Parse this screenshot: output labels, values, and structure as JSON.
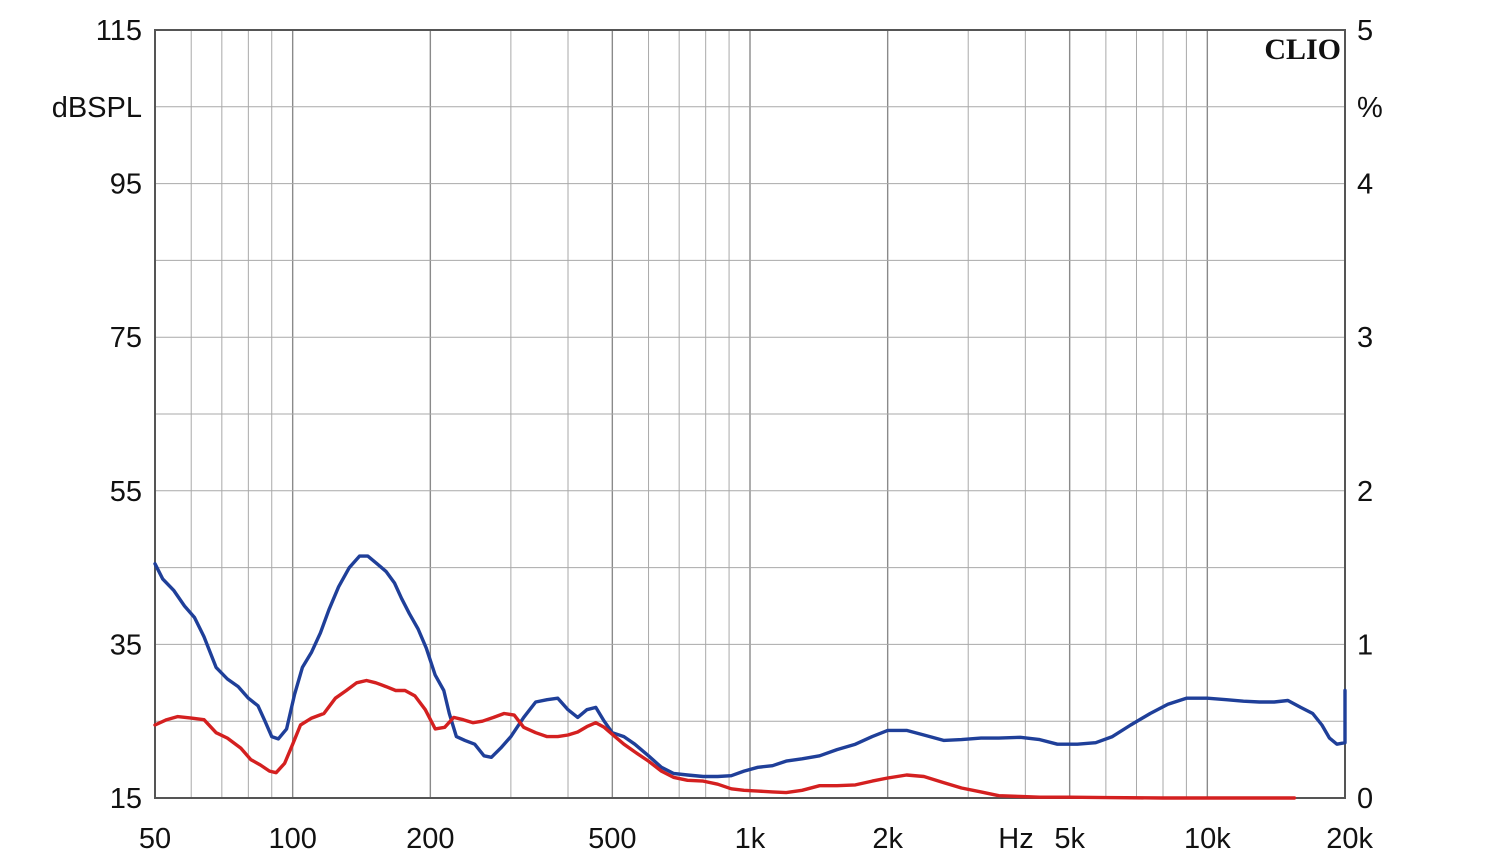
{
  "chart_data": {
    "type": "line",
    "brand": "CLIO",
    "x_scale": "log",
    "xlim": [
      50,
      20000
    ],
    "x_ticks": [
      {
        "value": 50,
        "label": "50"
      },
      {
        "value": 100,
        "label": "100"
      },
      {
        "value": 200,
        "label": "200"
      },
      {
        "value": 500,
        "label": "500"
      },
      {
        "value": 1000,
        "label": "1k"
      },
      {
        "value": 2000,
        "label": "2k"
      },
      {
        "value": 5000,
        "label": "5k"
      },
      {
        "value": 10000,
        "label": "10k"
      },
      {
        "value": 20000,
        "label": "20k"
      }
    ],
    "x_unit": "Hz",
    "y_left": {
      "unit": "dBSPL",
      "lim": [
        15,
        115
      ],
      "ticks": [
        "15",
        "35",
        "55",
        "75",
        "95",
        "115"
      ]
    },
    "y_right": {
      "unit": "%",
      "lim": [
        0,
        5
      ],
      "ticks": [
        "0",
        "1",
        "2",
        "3",
        "4",
        "5"
      ]
    },
    "grid": true,
    "series": [
      {
        "color": "#1f3f99",
        "axis": "left",
        "points": [
          [
            50,
            45.5
          ],
          [
            52,
            43.5
          ],
          [
            55,
            42
          ],
          [
            58,
            40
          ],
          [
            61,
            38.5
          ],
          [
            64,
            36
          ],
          [
            68,
            32
          ],
          [
            72,
            30.5
          ],
          [
            76,
            29.5
          ],
          [
            80,
            28
          ],
          [
            84,
            27
          ],
          [
            87,
            25
          ],
          [
            90,
            23
          ],
          [
            93,
            22.7
          ],
          [
            97,
            24
          ],
          [
            101,
            28.5
          ],
          [
            105,
            32
          ],
          [
            110,
            34
          ],
          [
            115,
            36.5
          ],
          [
            120,
            39.5
          ],
          [
            126,
            42.5
          ],
          [
            133,
            45
          ],
          [
            140,
            46.5
          ],
          [
            146,
            46.5
          ],
          [
            153,
            45.5
          ],
          [
            160,
            44.5
          ],
          [
            167,
            43
          ],
          [
            173,
            41
          ],
          [
            180,
            39
          ],
          [
            188,
            37
          ],
          [
            196,
            34.5
          ],
          [
            205,
            31
          ],
          [
            214,
            29
          ],
          [
            220,
            26
          ],
          [
            228,
            23
          ],
          [
            238,
            22.5
          ],
          [
            250,
            22
          ],
          [
            262,
            20.5
          ],
          [
            272,
            20.3
          ],
          [
            285,
            21.5
          ],
          [
            300,
            23
          ],
          [
            320,
            25.5
          ],
          [
            340,
            27.5
          ],
          [
            360,
            27.8
          ],
          [
            380,
            28
          ],
          [
            400,
            26.5
          ],
          [
            420,
            25.5
          ],
          [
            440,
            26.5
          ],
          [
            460,
            26.8
          ],
          [
            480,
            25
          ],
          [
            500,
            23.5
          ],
          [
            530,
            23
          ],
          [
            560,
            22
          ],
          [
            600,
            20.5
          ],
          [
            640,
            19
          ],
          [
            680,
            18.2
          ],
          [
            730,
            18
          ],
          [
            790,
            17.8
          ],
          [
            850,
            17.8
          ],
          [
            910,
            17.9
          ],
          [
            970,
            18.5
          ],
          [
            1040,
            19
          ],
          [
            1120,
            19.2
          ],
          [
            1200,
            19.8
          ],
          [
            1300,
            20.1
          ],
          [
            1420,
            20.5
          ],
          [
            1550,
            21.3
          ],
          [
            1700,
            22
          ],
          [
            1850,
            23
          ],
          [
            2000,
            23.8
          ],
          [
            2200,
            23.8
          ],
          [
            2400,
            23.2
          ],
          [
            2650,
            22.5
          ],
          [
            2900,
            22.6
          ],
          [
            3200,
            22.8
          ],
          [
            3500,
            22.8
          ],
          [
            3900,
            22.9
          ],
          [
            4300,
            22.6
          ],
          [
            4700,
            22
          ],
          [
            5200,
            22
          ],
          [
            5700,
            22.2
          ],
          [
            6200,
            23
          ],
          [
            6800,
            24.5
          ],
          [
            7500,
            26
          ],
          [
            8200,
            27.2
          ],
          [
            9000,
            28
          ],
          [
            10000,
            28
          ],
          [
            11000,
            27.8
          ],
          [
            12000,
            27.6
          ],
          [
            13000,
            27.5
          ],
          [
            14000,
            27.5
          ],
          [
            15000,
            27.7
          ],
          [
            16000,
            26.8
          ],
          [
            17000,
            26
          ],
          [
            17800,
            24.5
          ],
          [
            18500,
            22.8
          ],
          [
            19200,
            22
          ],
          [
            20000,
            22.2
          ],
          [
            20700,
            23.4
          ],
          [
            21400,
            26.8
          ],
          [
            22000,
            29
          ],
          [
            22800,
            28.8
          ],
          [
            23500,
            28.5
          ],
          [
            24500,
            28.4
          ],
          [
            25500,
            28
          ],
          [
            26200,
            27.5
          ]
        ]
      },
      {
        "color": "#d42020",
        "axis": "left",
        "points": [
          [
            50,
            24.5
          ],
          [
            53,
            25.2
          ],
          [
            56,
            25.6
          ],
          [
            60,
            25.4
          ],
          [
            64,
            25.2
          ],
          [
            68,
            23.5
          ],
          [
            72,
            22.8
          ],
          [
            77,
            21.5
          ],
          [
            81,
            20
          ],
          [
            85,
            19.3
          ],
          [
            89,
            18.5
          ],
          [
            92,
            18.3
          ],
          [
            96,
            19.5
          ],
          [
            100,
            22
          ],
          [
            104,
            24.5
          ],
          [
            110,
            25.4
          ],
          [
            117,
            26
          ],
          [
            124,
            28
          ],
          [
            131,
            29
          ],
          [
            138,
            30
          ],
          [
            145,
            30.3
          ],
          [
            152,
            30
          ],
          [
            160,
            29.5
          ],
          [
            168,
            29
          ],
          [
            176,
            29
          ],
          [
            185,
            28.3
          ],
          [
            195,
            26.5
          ],
          [
            205,
            24
          ],
          [
            215,
            24.2
          ],
          [
            225,
            25.5
          ],
          [
            236,
            25.2
          ],
          [
            248,
            24.8
          ],
          [
            260,
            25
          ],
          [
            275,
            25.5
          ],
          [
            290,
            26
          ],
          [
            305,
            25.8
          ],
          [
            320,
            24.2
          ],
          [
            340,
            23.5
          ],
          [
            360,
            23
          ],
          [
            380,
            23
          ],
          [
            400,
            23.2
          ],
          [
            420,
            23.6
          ],
          [
            440,
            24.3
          ],
          [
            460,
            24.8
          ],
          [
            480,
            24.2
          ],
          [
            500,
            23.3
          ],
          [
            530,
            22
          ],
          [
            560,
            21
          ],
          [
            600,
            19.8
          ],
          [
            640,
            18.5
          ],
          [
            680,
            17.7
          ],
          [
            730,
            17.3
          ],
          [
            790,
            17.2
          ],
          [
            850,
            16.8
          ],
          [
            910,
            16.2
          ],
          [
            970,
            16
          ],
          [
            1040,
            15.9
          ],
          [
            1120,
            15.8
          ],
          [
            1200,
            15.7
          ],
          [
            1300,
            16
          ],
          [
            1420,
            16.6
          ],
          [
            1550,
            16.6
          ],
          [
            1700,
            16.7
          ],
          [
            1850,
            17.2
          ],
          [
            2000,
            17.6
          ],
          [
            2200,
            18
          ],
          [
            2400,
            17.8
          ],
          [
            2650,
            17
          ],
          [
            2900,
            16.3
          ],
          [
            3200,
            15.8
          ],
          [
            3500,
            15.3
          ],
          [
            3900,
            15.2
          ],
          [
            4300,
            15.1
          ],
          [
            5000,
            15.1
          ],
          [
            6000,
            15.05
          ],
          [
            8000,
            15
          ],
          [
            10000,
            15
          ],
          [
            12000,
            15
          ],
          [
            14000,
            15
          ],
          [
            15500,
            15
          ]
        ]
      }
    ]
  }
}
